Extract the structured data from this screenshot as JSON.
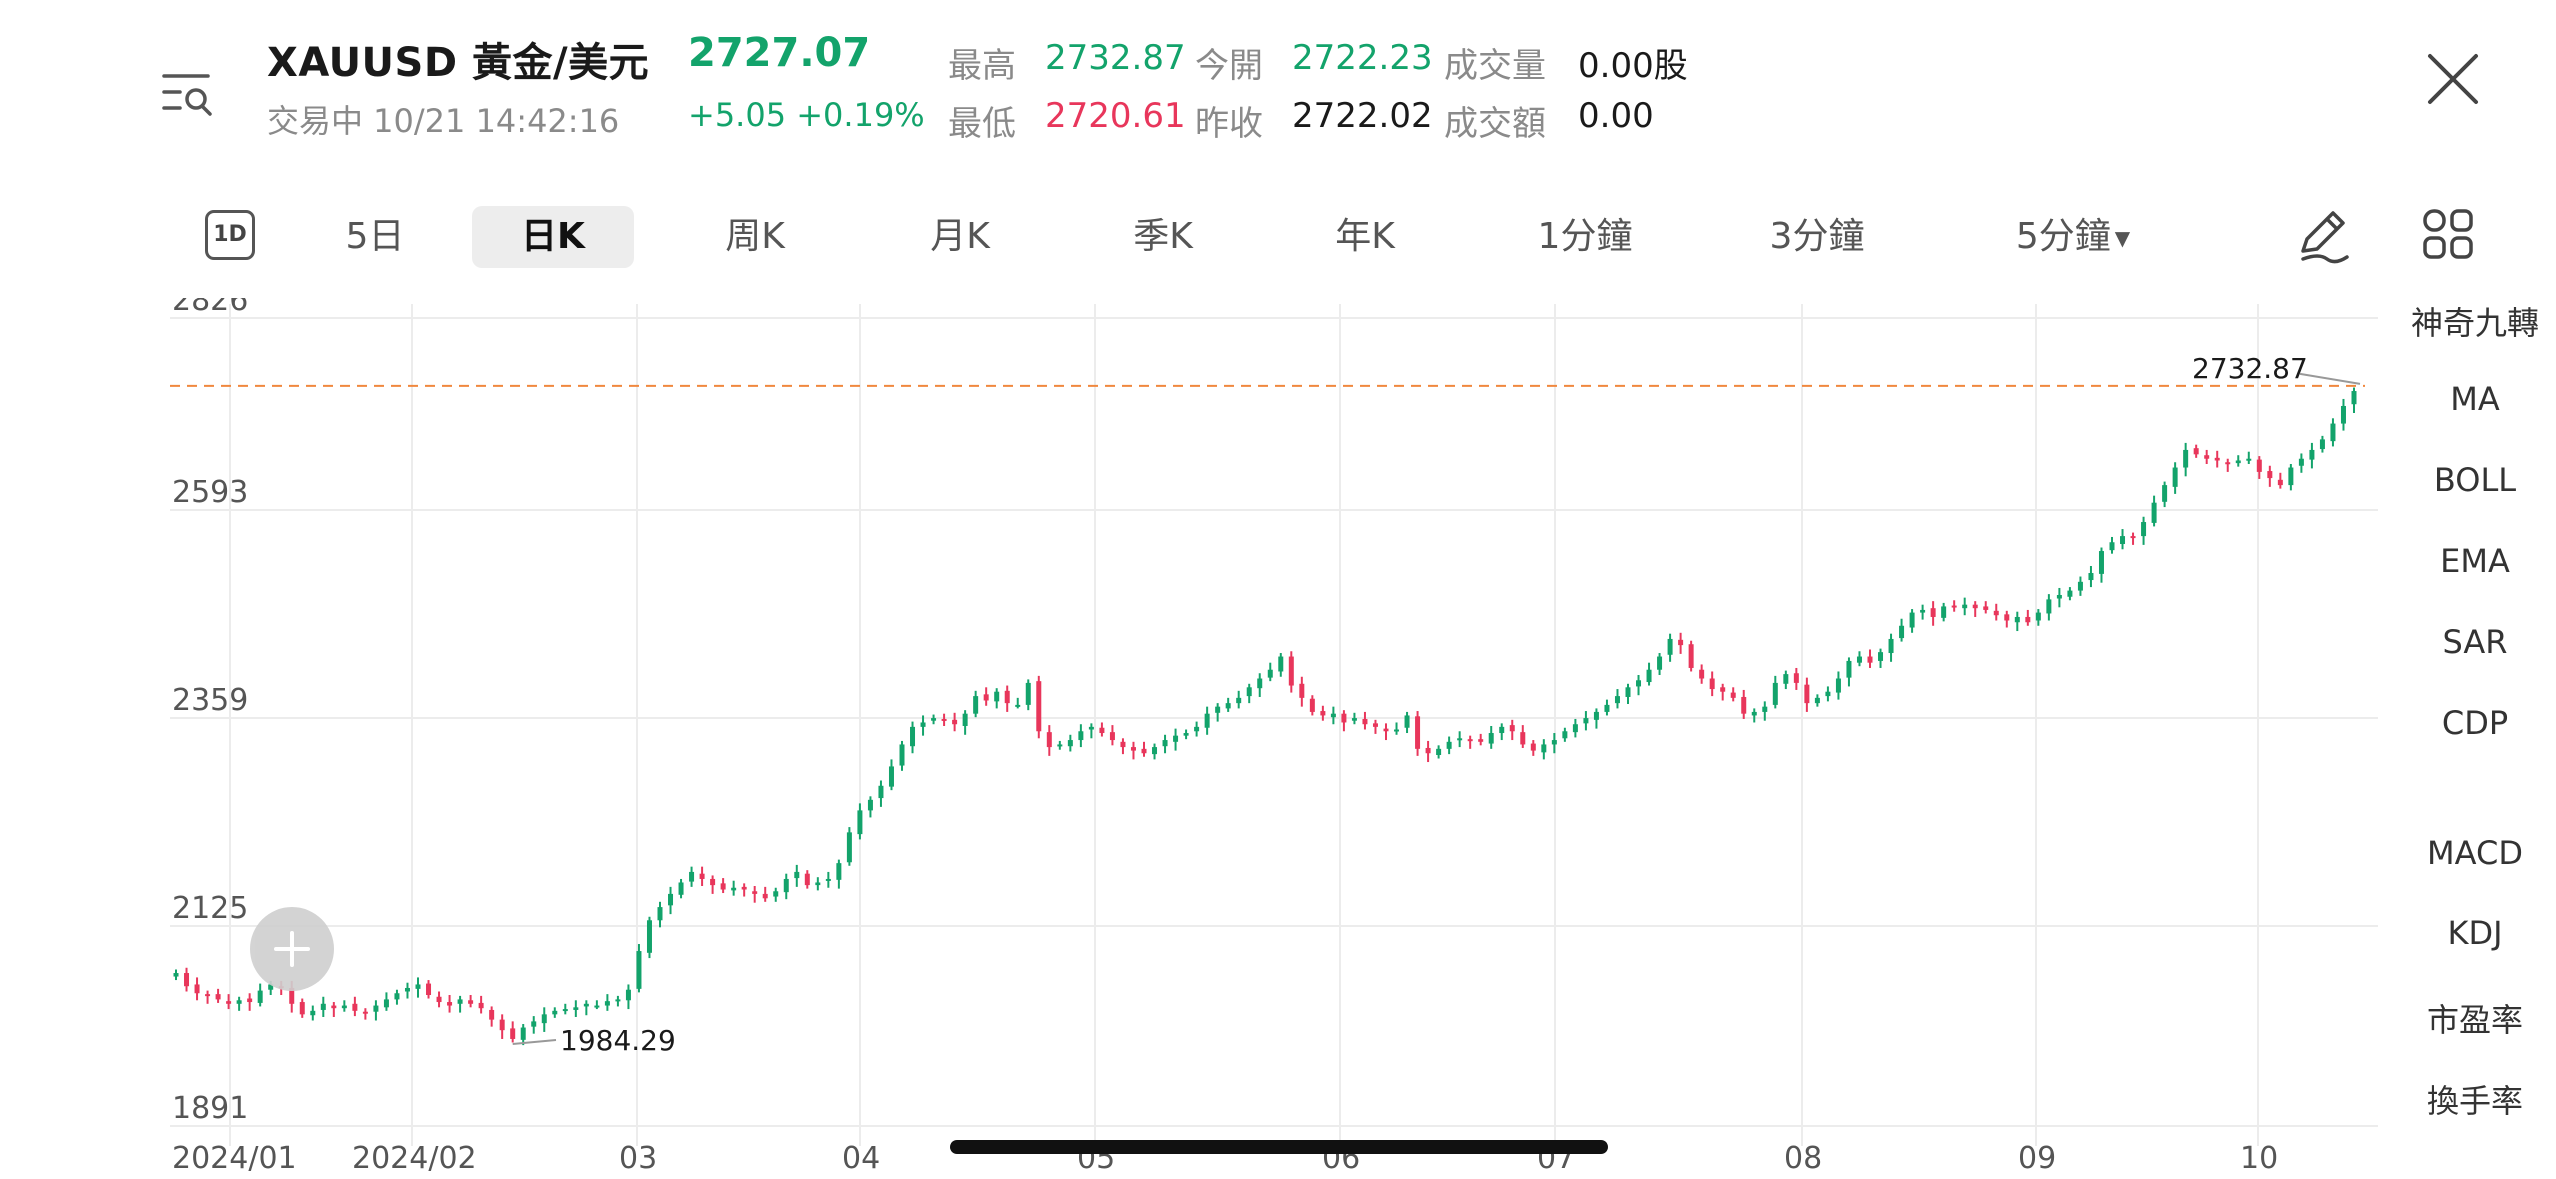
{
  "header": {
    "symbol": "XAUUSD 黃金/美元",
    "price": "2727.07",
    "status": "交易中 10/21 14:42:16",
    "change": "+5.05 +0.19%",
    "stats": [
      {
        "label": "最高",
        "value": "2732.87",
        "color": "up"
      },
      {
        "label": "今開",
        "value": "2722.23",
        "color": "up"
      },
      {
        "label": "成交量",
        "value": "0.00股",
        "color": "neutral"
      },
      {
        "label": "最低",
        "value": "2720.61",
        "color": "down"
      },
      {
        "label": "昨收",
        "value": "2722.02",
        "color": "neutral"
      },
      {
        "label": "成交額",
        "value": "0.00",
        "color": "neutral"
      }
    ]
  },
  "tabs": {
    "t1d": "1D",
    "items": [
      "5日",
      "日K",
      "周K",
      "月K",
      "季K",
      "年K",
      "1分鐘",
      "3分鐘",
      "5分鐘"
    ],
    "active": "日K"
  },
  "indicators": [
    "神奇九轉",
    "MA",
    "BOLL",
    "EMA",
    "SAR",
    "CDP",
    "MACD",
    "KDJ",
    "市盈率",
    "換手率"
  ],
  "colors": {
    "up": "#13a36b",
    "down": "#e8365b",
    "highline": "#f0883e"
  },
  "chart_data": {
    "type": "candlestick",
    "yticks": [
      "2826",
      "2593",
      "2359",
      "2125",
      "1891"
    ],
    "ylim": [
      1891,
      2826
    ],
    "xticks": [
      "2024/01",
      "2024/02",
      "03",
      "04",
      "05",
      "06",
      "07",
      "08",
      "09",
      "10"
    ],
    "high_label": "2732.87",
    "low_label": "1984.29",
    "high_value": 2732.87,
    "low_value": 1984.29,
    "close_series": [
      2065,
      2050,
      2042,
      2040,
      2035,
      2030,
      2034,
      2032,
      2045,
      2052,
      2048,
      2030,
      2018,
      2022,
      2030,
      2025,
      2028,
      2022,
      2020,
      2028,
      2035,
      2042,
      2048,
      2052,
      2040,
      2032,
      2028,
      2035,
      2030,
      2025,
      2012,
      2000,
      1990,
      2003,
      2010,
      2018,
      2022,
      2024,
      2026,
      2030,
      2028,
      2033,
      2035,
      2046,
      2090,
      2125,
      2140,
      2155,
      2168,
      2180,
      2172,
      2165,
      2160,
      2162,
      2160,
      2155,
      2150,
      2158,
      2172,
      2180,
      2165,
      2168,
      2172,
      2190,
      2225,
      2250,
      2262,
      2278,
      2300,
      2325,
      2345,
      2350,
      2355,
      2352,
      2348,
      2360,
      2380,
      2375,
      2385,
      2372,
      2370,
      2395,
      2340,
      2322,
      2325,
      2330,
      2340,
      2345,
      2338,
      2330,
      2322,
      2318,
      2315,
      2322,
      2330,
      2335,
      2338,
      2345,
      2360,
      2368,
      2372,
      2378,
      2390,
      2400,
      2410,
      2425,
      2392,
      2378,
      2362,
      2358,
      2360,
      2350,
      2355,
      2348,
      2345,
      2340,
      2342,
      2358,
      2320,
      2315,
      2320,
      2328,
      2332,
      2330,
      2328,
      2338,
      2345,
      2340,
      2325,
      2318,
      2325,
      2330,
      2340,
      2348,
      2355,
      2362,
      2370,
      2380,
      2390,
      2398,
      2410,
      2425,
      2445,
      2438,
      2412,
      2400,
      2388,
      2385,
      2378,
      2360,
      2362,
      2368,
      2395,
      2405,
      2395,
      2372,
      2378,
      2385,
      2400,
      2420,
      2425,
      2418,
      2430,
      2445,
      2460,
      2475,
      2478,
      2470,
      2482,
      2482,
      2484,
      2480,
      2478,
      2472,
      2466,
      2470,
      2464,
      2475,
      2490,
      2495,
      2500,
      2510,
      2520,
      2545,
      2555,
      2562,
      2560,
      2578,
      2600,
      2620,
      2640,
      2660,
      2655,
      2650,
      2648,
      2645,
      2648,
      2650,
      2635,
      2628,
      2620,
      2640,
      2650,
      2660,
      2672,
      2690,
      2710,
      2727
    ]
  }
}
